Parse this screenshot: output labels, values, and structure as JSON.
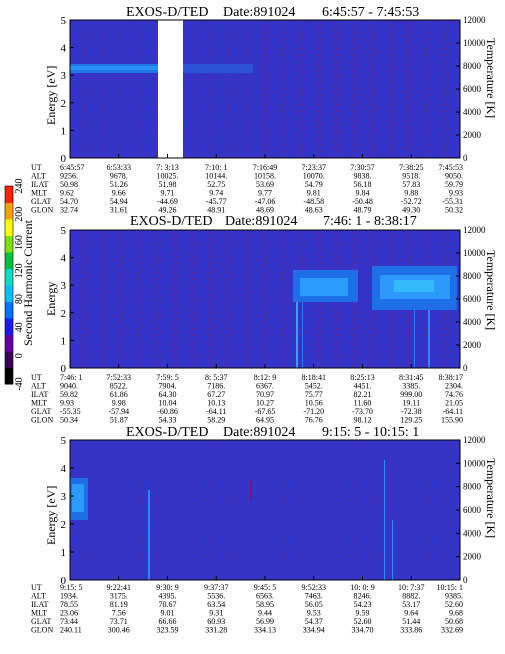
{
  "colorbar": {
    "label": "Second Harmonic Current",
    "ticks": [
      "-40",
      "0",
      "40",
      "80",
      "120",
      "160",
      "200",
      "240"
    ],
    "colors": [
      "#000000",
      "#3a0060",
      "#6a00a8",
      "#1a1aff",
      "#0070ff",
      "#00c0ff",
      "#00e0c0",
      "#00c040",
      "#80e000",
      "#ffff00",
      "#ffa000",
      "#ff2000"
    ]
  },
  "chart_data": [
    {
      "type": "heatmap",
      "title": "EXOS-D/TED",
      "date_label": "Date:891024",
      "time_range": "6:45:57 - 7:45:53",
      "ylabel": "Energy [eV]",
      "ylabel_right": "Temperature [K]",
      "ylim": [
        0,
        5
      ],
      "ylim_right": [
        0,
        12000
      ],
      "yticks": [
        "0",
        "1",
        "2",
        "3",
        "4",
        "5"
      ],
      "yticks_right": [
        "0",
        "2000",
        "4000",
        "6000",
        "8000",
        "10000",
        "12000"
      ],
      "orbit_labels": [
        "UT",
        "ALT",
        "ILAT",
        "MLT",
        "GLAT",
        "GLON"
      ],
      "orbit_columns": [
        [
          "6:45:57",
          "9256.",
          "50.98",
          "9.62",
          "54.70",
          "32.74"
        ],
        [
          "6:53:33",
          "9678.",
          "51.26",
          "9.66",
          "54.94",
          "31.61"
        ],
        [
          "7: 3:13",
          "10025.",
          "51.98",
          "9.71",
          "-44.69",
          "49.26"
        ],
        [
          "7:10: 1",
          "10144.",
          "52.75",
          "9.74",
          "-45.77",
          "48.91"
        ],
        [
          "7:16:49",
          "10158.",
          "53.69",
          "9.77",
          "-47.06",
          "48.69"
        ],
        [
          "7:23:37",
          "10070.",
          "54.79",
          "9.81",
          "-48.58",
          "48.63"
        ],
        [
          "7:30:57",
          "9838.",
          "56.18",
          "9.84",
          "-50.48",
          "48.79"
        ],
        [
          "7:38:25",
          "9518.",
          "57.83",
          "9.88",
          "-52.72",
          "49.30"
        ],
        [
          "7:45:53",
          "9050.",
          "59.79",
          "9.93",
          "-55.31",
          "50.32"
        ]
      ]
    },
    {
      "type": "heatmap",
      "title": "EXOS-D/TED",
      "date_label": "Date:891024",
      "time_range": "7:46: 1 - 8:38:17",
      "ylabel": "Energy",
      "ylabel_right": "Temperature [K]",
      "ylim": [
        0,
        5
      ],
      "ylim_right": [
        0,
        12000
      ],
      "yticks": [
        "0",
        "1",
        "2",
        "3",
        "4",
        "5"
      ],
      "yticks_right": [
        "0",
        "2000",
        "4000",
        "6000",
        "8000",
        "10000",
        "12000"
      ],
      "orbit_labels": [
        "UT",
        "ALT",
        "ILAT",
        "MLT",
        "GLAT",
        "GLON"
      ],
      "orbit_columns": [
        [
          "7:46: 1",
          "9040.",
          "59.82",
          "9.93",
          "-55.35",
          "50.34"
        ],
        [
          "7:52:33",
          "8522.",
          "61.86",
          "9.98",
          "-57.94",
          "51.87"
        ],
        [
          "7:59: 5",
          "7904.",
          "64.30",
          "10.04",
          "-60.86",
          "54.33"
        ],
        [
          "8: 5:37",
          "7186.",
          "67.27",
          "10.13",
          "-64.11",
          "58.29"
        ],
        [
          "8:12: 9",
          "6367.",
          "70.97",
          "10.27",
          "-67.65",
          "64.95"
        ],
        [
          "8:18:41",
          "5452.",
          "75.77",
          "10.56",
          "-71.20",
          "76.76"
        ],
        [
          "8:25:13",
          "4451.",
          "82.21",
          "11.60",
          "-73.70",
          "98.12"
        ],
        [
          "8:31:45",
          "3385.",
          "999.00",
          "19.11",
          "-72.38",
          "129.25"
        ],
        [
          "8:38:17",
          "2304.",
          "74.76",
          "21.05",
          "-64.11",
          "155.90"
        ]
      ]
    },
    {
      "type": "heatmap",
      "title": "EXOS-D/TED",
      "date_label": "Date:891024",
      "time_range": "9:15: 5 - 10:15: 1",
      "ylabel": "Energy [eV]",
      "ylabel_right": "Temperature [K]",
      "ylim": [
        0,
        5
      ],
      "ylim_right": [
        0,
        12000
      ],
      "yticks": [
        "0",
        "1",
        "2",
        "3",
        "4",
        "5"
      ],
      "yticks_right": [
        "0",
        "2000",
        "4000",
        "6000",
        "8000",
        "10000",
        "12000"
      ],
      "orbit_labels": [
        "UT",
        "ALT",
        "ILAT",
        "MLT",
        "GLAT",
        "GLON"
      ],
      "orbit_columns": [
        [
          "9:15: 5",
          "1934.",
          "78.55",
          "23.06",
          "73.44",
          "240.11"
        ],
        [
          "9:22:41",
          "3175.",
          "81.19",
          "7.56",
          "73.71",
          "300.46"
        ],
        [
          "9:30: 9",
          "4395.",
          "70.67",
          "9.01",
          "66.66",
          "323.59"
        ],
        [
          "9:37:37",
          "5536.",
          "63.54",
          "9.31",
          "60.93",
          "331.28"
        ],
        [
          "9:45: 5",
          "6563.",
          "58.95",
          "9.44",
          "56.99",
          "334.13"
        ],
        [
          "9:52:33",
          "7463.",
          "56.05",
          "9.53",
          "54.37",
          "334.94"
        ],
        [
          "10: 0: 9",
          "8246.",
          "54.23",
          "9.59",
          "52.60",
          "334.70"
        ],
        [
          "10: 7:37",
          "8882.",
          "53.17",
          "9.64",
          "51.44",
          "333.86"
        ],
        [
          "10:15: 1",
          "9385.",
          "52.60",
          "9.68",
          "50.68",
          "332.69"
        ]
      ]
    }
  ]
}
